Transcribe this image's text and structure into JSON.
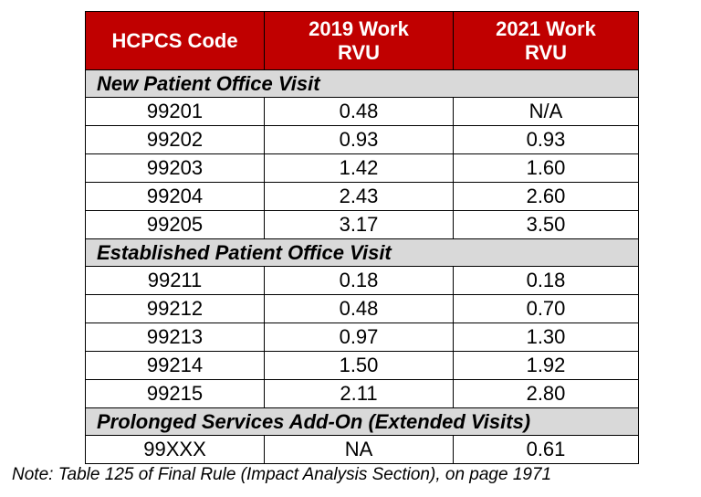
{
  "table": {
    "headers": [
      "HCPCS Code",
      "2019 Work\nRVU",
      "2021 Work\nRVU"
    ],
    "sections": [
      {
        "title": "New Patient Office Visit",
        "rows": [
          [
            "99201",
            "0.48",
            "N/A"
          ],
          [
            "99202",
            "0.93",
            "0.93"
          ],
          [
            "99203",
            "1.42",
            "1.60"
          ],
          [
            "99204",
            "2.43",
            "2.60"
          ],
          [
            "99205",
            "3.17",
            "3.50"
          ]
        ]
      },
      {
        "title": "Established Patient Office Visit",
        "rows": [
          [
            "99211",
            "0.18",
            "0.18"
          ],
          [
            "99212",
            "0.48",
            "0.70"
          ],
          [
            "99213",
            "0.97",
            "1.30"
          ],
          [
            "99214",
            "1.50",
            "1.92"
          ],
          [
            "99215",
            "2.11",
            "2.80"
          ]
        ]
      },
      {
        "title": "Prolonged Services Add-On (Extended Visits)",
        "rows": [
          [
            "99XXX",
            "NA",
            "0.61"
          ]
        ]
      }
    ]
  },
  "note": "Note: Table 125 of Final Rule (Impact Analysis Section), on page 1971",
  "colors": {
    "header_bg": "#c00000",
    "header_text": "#ffffff",
    "section_bg": "#d9d9d9"
  }
}
